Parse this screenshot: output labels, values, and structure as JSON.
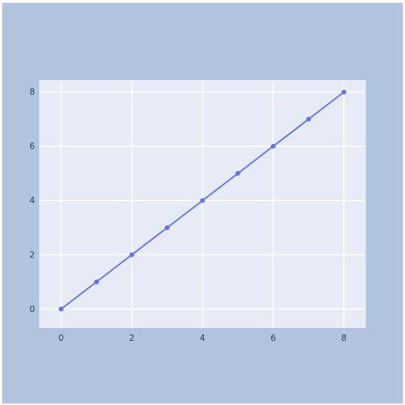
{
  "colors": {
    "paper_bg": "#b0c4de",
    "plot_bg": "#e5ecf6",
    "grid": "#ffffff",
    "line": "#636efa",
    "tick_text": "#2a3f5f"
  },
  "chart_data": {
    "type": "line",
    "mode": "lines+markers",
    "title": "",
    "xlabel": "",
    "ylabel": "",
    "x": [
      0,
      1,
      2,
      3,
      4,
      5,
      6,
      7,
      8
    ],
    "y": [
      0,
      1,
      2,
      3,
      4,
      5,
      6,
      7,
      8
    ],
    "xlim": [
      -0.62,
      8.62
    ],
    "ylim": [
      -0.7,
      8.45
    ],
    "x_ticks": [
      0,
      2,
      4,
      6,
      8
    ],
    "y_ticks": [
      0,
      2,
      4,
      6,
      8
    ],
    "x_tick_labels": [
      "0",
      "2",
      "4",
      "6",
      "8"
    ],
    "y_tick_labels": [
      "0",
      "2",
      "4",
      "6",
      "8"
    ],
    "grid": true,
    "legend": "none"
  }
}
